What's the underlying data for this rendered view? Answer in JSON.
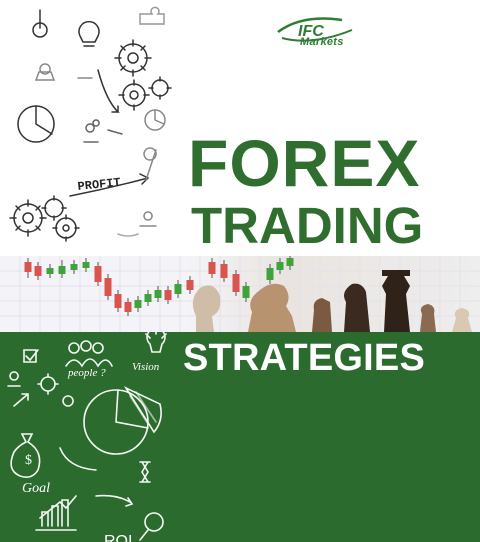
{
  "brand": {
    "logo_text": "IFC",
    "name": "Markets",
    "logo_icon": "swoosh-logo-icon"
  },
  "headline": {
    "line1": "FOREX",
    "line2": "TRADING",
    "line3": "STRATEGIES"
  },
  "sketch_labels": {
    "profit": "PROFIT",
    "people": "people ?",
    "vision": "Vision",
    "goal": "Goal",
    "dollar": "$",
    "bottom_partial": "ROI"
  },
  "colors": {
    "brand_green": "#2f6e2f",
    "panel_green": "#2b6b2e",
    "candle_up": "#3ea33a",
    "candle_down": "#d9534f",
    "grid_line": "#e6e6ef"
  },
  "icons": [
    "gear-icon",
    "lightbulb-icon",
    "magnifier-icon",
    "pie-chart-icon",
    "money-bag-icon",
    "bar-chart-icon",
    "people-icon",
    "chess-pieces-icon"
  ]
}
